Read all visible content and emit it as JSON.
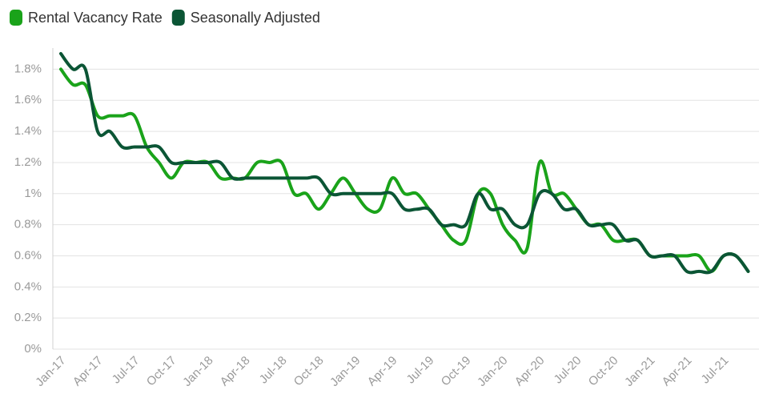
{
  "chart_data": {
    "type": "line",
    "categories": [
      "Jan-17",
      null,
      null,
      "Apr-17",
      null,
      null,
      "Jul-17",
      null,
      null,
      "Oct-17",
      null,
      null,
      "Jan-18",
      null,
      null,
      "Apr-18",
      null,
      null,
      "Jul-18",
      null,
      null,
      "Oct-18",
      null,
      null,
      "Jan-19",
      null,
      null,
      "Apr-19",
      null,
      null,
      "Jul-19",
      null,
      null,
      "Oct-19",
      null,
      null,
      "Jan-20",
      null,
      null,
      "Apr-20",
      null,
      null,
      "Jul-20",
      null,
      null,
      "Oct-20",
      null,
      null,
      "Jan-21",
      null,
      null,
      "Apr-21",
      null,
      null,
      "Jul-21",
      null,
      null
    ],
    "series": [
      {
        "name": "Rental Vacancy Rate",
        "color": "#1aa31a",
        "values": [
          1.8,
          1.7,
          1.7,
          1.5,
          1.5,
          1.5,
          1.5,
          1.3,
          1.2,
          1.1,
          1.2,
          1.2,
          1.2,
          1.1,
          1.1,
          1.1,
          1.2,
          1.2,
          1.2,
          1.0,
          1.0,
          0.9,
          1.0,
          1.1,
          1.0,
          0.9,
          0.9,
          1.1,
          1.0,
          1.0,
          0.9,
          0.8,
          0.7,
          0.7,
          1.0,
          1.0,
          0.8,
          0.7,
          0.65,
          1.2,
          1.0,
          1.0,
          0.9,
          0.8,
          0.8,
          0.7,
          0.7,
          0.7,
          0.6,
          0.6,
          0.6,
          0.6,
          0.6,
          0.5,
          0.6,
          0.6,
          0.5
        ]
      },
      {
        "name": "Seasonally Adjusted",
        "color": "#0b5535",
        "values": [
          1.9,
          1.8,
          1.8,
          1.4,
          1.4,
          1.3,
          1.3,
          1.3,
          1.3,
          1.2,
          1.2,
          1.2,
          1.2,
          1.2,
          1.1,
          1.1,
          1.1,
          1.1,
          1.1,
          1.1,
          1.1,
          1.1,
          1.0,
          1.0,
          1.0,
          1.0,
          1.0,
          1.0,
          0.9,
          0.9,
          0.9,
          0.8,
          0.8,
          0.8,
          1.0,
          0.9,
          0.9,
          0.8,
          0.8,
          1.0,
          1.0,
          0.9,
          0.9,
          0.8,
          0.8,
          0.8,
          0.7,
          0.7,
          0.6,
          0.6,
          0.6,
          0.5,
          0.5,
          0.5,
          0.6,
          0.6,
          0.5
        ]
      }
    ],
    "ylim": [
      0,
      1.9
    ],
    "yticks": [
      {
        "value": 0,
        "label": "0%"
      },
      {
        "value": 0.2,
        "label": "0.2%"
      },
      {
        "value": 0.4,
        "label": "0.4%"
      },
      {
        "value": 0.6,
        "label": "0.6%"
      },
      {
        "value": 0.8,
        "label": "0.8%"
      },
      {
        "value": 1,
        "label": "1%"
      },
      {
        "value": 1.2,
        "label": "1.2%"
      },
      {
        "value": 1.4,
        "label": "1.4%"
      },
      {
        "value": 1.6,
        "label": "1.6%"
      },
      {
        "value": 1.8,
        "label": "1.8%"
      }
    ],
    "grid": true
  }
}
